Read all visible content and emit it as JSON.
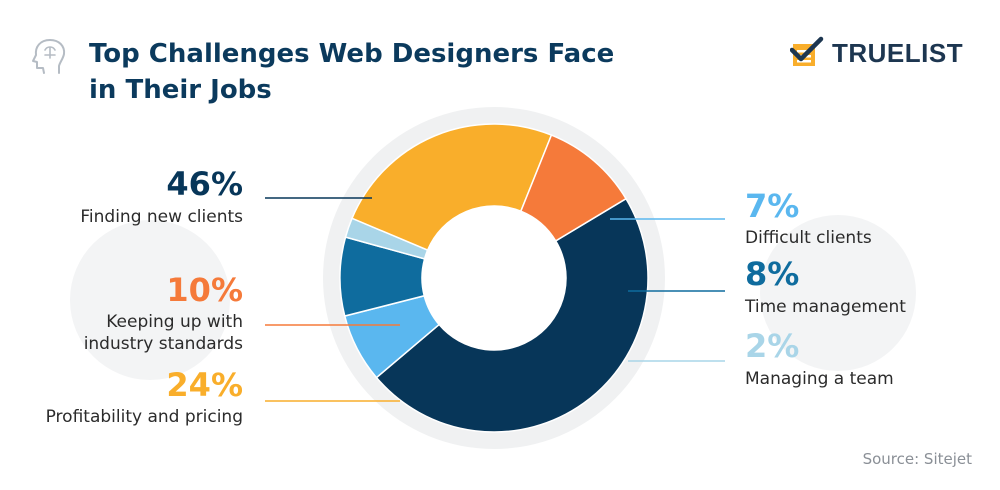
{
  "title": "Top Challenges Web Designers Face in Their Jobs",
  "brand": "TRUELIST",
  "source": "Source: Sitejet",
  "chart_data": {
    "type": "pie",
    "title": "Top Challenges Web Designers Face in Their Jobs",
    "slices": [
      {
        "label": "Finding new clients",
        "value": 46,
        "display": "46%",
        "color": "#073659"
      },
      {
        "label": "Difficult clients",
        "value": 7,
        "display": "7%",
        "color": "#5ab7ef"
      },
      {
        "label": "Time management",
        "value": 8,
        "display": "8%",
        "color": "#0f6c9e"
      },
      {
        "label": "Managing a team",
        "value": 2,
        "display": "2%",
        "color": "#a9d5e8"
      },
      {
        "label": "Profitability and pricing",
        "value": 24,
        "display": "24%",
        "color": "#f9ae2b"
      },
      {
        "label": "Keeping up with industry standards",
        "value": 10,
        "display": "10%",
        "color": "#f57a3a"
      }
    ]
  }
}
